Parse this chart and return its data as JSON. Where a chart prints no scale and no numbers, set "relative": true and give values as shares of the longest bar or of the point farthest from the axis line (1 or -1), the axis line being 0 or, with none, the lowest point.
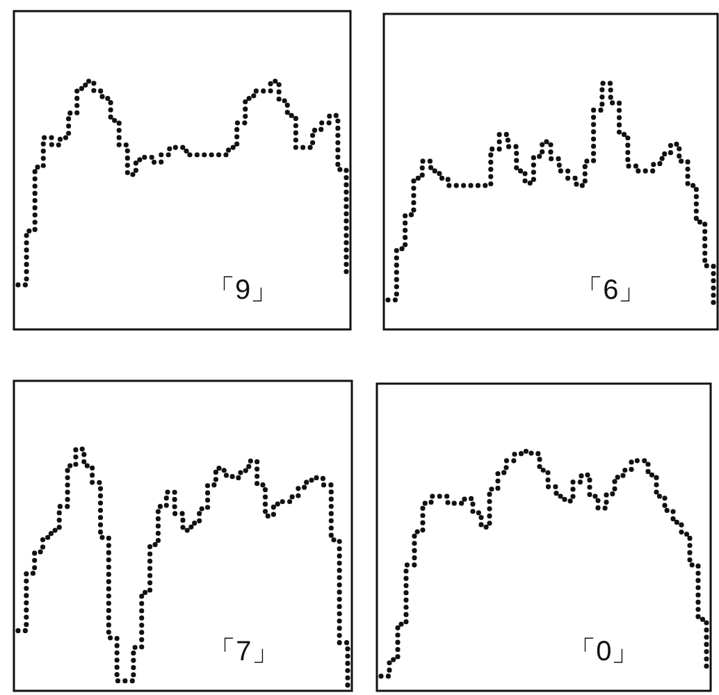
{
  "chart_data": [
    {
      "type": "step",
      "relative": true,
      "line_style": "dotted",
      "annotations": [
        "「9」"
      ],
      "categories": [
        null,
        null,
        null,
        null,
        null,
        null,
        null,
        null,
        null,
        null,
        null,
        null,
        null,
        null,
        null,
        null,
        null,
        null,
        null,
        null,
        null,
        null,
        null,
        null,
        null,
        null,
        null,
        null,
        null,
        null,
        null,
        null,
        null,
        null,
        null,
        null,
        null,
        null,
        null,
        null
      ],
      "series": [
        {
          "color": "#111111",
          "values": [
            0.17,
            0.39,
            0.65,
            0.77,
            0.74,
            0.77,
            0.87,
            0.97,
            1,
            0.96,
            0.93,
            0.84,
            0.74,
            0.62,
            0.68,
            0.69,
            0.67,
            0.7,
            0.73,
            0.73,
            0.7,
            0.7,
            0.7,
            0.7,
            0.7,
            0.73,
            0.83,
            0.93,
            0.96,
            0.96,
            1,
            0.92,
            0.86,
            0.73,
            0.73,
            0.8,
            0.83,
            0.86,
            0.64,
            0.22
          ]
        }
      ]
    },
    {
      "type": "step",
      "relative": true,
      "line_style": "dotted",
      "annotations": [
        "「6」"
      ],
      "categories": [
        null,
        null,
        null,
        null,
        null,
        null,
        null,
        null,
        null,
        null,
        null,
        null,
        null,
        null,
        null,
        null,
        null,
        null,
        null,
        null,
        null,
        null,
        null,
        null,
        null,
        null,
        null,
        null,
        null,
        null,
        null,
        null,
        null,
        null,
        null,
        null,
        null,
        null,
        null
      ],
      "series": [
        {
          "color": "#111111",
          "values": [
            0.11,
            0.32,
            0.46,
            0.61,
            0.68,
            0.64,
            0.61,
            0.58,
            0.58,
            0.58,
            0.58,
            0.58,
            0.73,
            0.79,
            0.74,
            0.64,
            0.59,
            0.7,
            0.76,
            0.69,
            0.64,
            0.61,
            0.58,
            0.68,
            0.89,
            1,
            0.92,
            0.79,
            0.66,
            0.64,
            0.64,
            0.67,
            0.71,
            0.75,
            0.68,
            0.58,
            0.43,
            0.25,
            0.07
          ]
        }
      ]
    },
    {
      "type": "step",
      "relative": true,
      "line_style": "dotted",
      "annotations": [
        "「7」"
      ],
      "categories": [
        null,
        null,
        null,
        null,
        null,
        null,
        null,
        null,
        null,
        null,
        null,
        null,
        null,
        null,
        null,
        null,
        null,
        null,
        null,
        null,
        null,
        null,
        null,
        null,
        null,
        null,
        null,
        null,
        null,
        null,
        null,
        null,
        null,
        null,
        null,
        null,
        null,
        null,
        null,
        null,
        null
      ],
      "series": [
        {
          "color": "#111111",
          "values": [
            0.24,
            0.48,
            0.57,
            0.63,
            0.66,
            0.76,
            0.93,
            1,
            0.93,
            0.86,
            0.63,
            0.21,
            0.03,
            0.03,
            0.17,
            0.4,
            0.6,
            0.76,
            0.82,
            0.73,
            0.66,
            0.69,
            0.75,
            0.85,
            0.92,
            0.89,
            0.88,
            0.91,
            0.95,
            0.85,
            0.72,
            0.77,
            0.78,
            0.8,
            0.84,
            0.87,
            0.88,
            0.85,
            0.62,
            0.19,
            0.01
          ]
        }
      ]
    },
    {
      "type": "step",
      "relative": true,
      "line_style": "dotted",
      "annotations": [
        "「0」"
      ],
      "categories": [
        null,
        null,
        null,
        null,
        null,
        null,
        null,
        null,
        null,
        null,
        null,
        null,
        null,
        null,
        null,
        null,
        null,
        null,
        null,
        null,
        null,
        null,
        null,
        null,
        null,
        null,
        null,
        null,
        null,
        null,
        null,
        null,
        null,
        null,
        null,
        null,
        null,
        null,
        null,
        null
      ],
      "series": [
        {
          "color": "#111111",
          "values": [
            0.05,
            0.12,
            0.27,
            0.52,
            0.66,
            0.78,
            0.81,
            0.81,
            0.78,
            0.78,
            0.8,
            0.74,
            0.68,
            0.84,
            0.91,
            0.96,
            0.99,
            1,
            0.99,
            0.92,
            0.85,
            0.81,
            0.79,
            0.87,
            0.9,
            0.81,
            0.76,
            0.82,
            0.89,
            0.92,
            0.96,
            0.96,
            0.9,
            0.81,
            0.75,
            0.7,
            0.65,
            0.52,
            0.29,
            0.07
          ]
        }
      ]
    }
  ]
}
